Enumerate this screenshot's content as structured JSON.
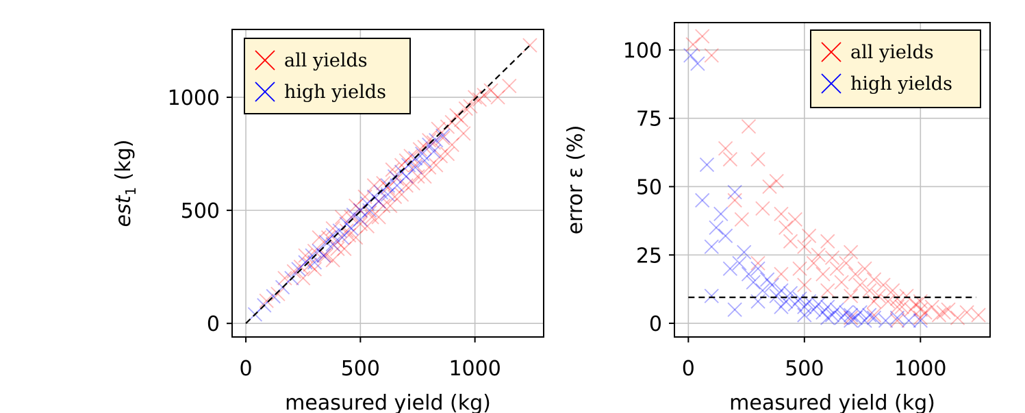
{
  "chart_data": [
    {
      "type": "scatter",
      "xlabel": "measured yield (kg)",
      "ylabel_main": "est",
      "ylabel_sub": "1",
      "ylabel_unit": " (kg)",
      "xlim": [
        -60,
        1300
      ],
      "ylim": [
        -60,
        1300
      ],
      "xticks": [
        0,
        500,
        1000
      ],
      "yticks": [
        0,
        500,
        1000
      ],
      "xtick_labels": [
        "0",
        "500",
        "1000"
      ],
      "ytick_labels": [
        "0",
        "500",
        "1000"
      ],
      "grid": true,
      "legend_position": "top-left",
      "legend": [
        "all yields",
        "high yields"
      ],
      "reference_line": {
        "from": [
          0,
          0
        ],
        "to": [
          1240,
          1230
        ],
        "style": "dashed",
        "color": "#000000"
      },
      "series": [
        {
          "name": "all yields",
          "color": "#ff0000",
          "marker": "x",
          "x": [
            90,
            140,
            170,
            210,
            240,
            260,
            280,
            300,
            320,
            340,
            360,
            380,
            400,
            420,
            440,
            460,
            480,
            500,
            520,
            540,
            560,
            580,
            600,
            620,
            640,
            660,
            680,
            700,
            720,
            740,
            760,
            780,
            800,
            820,
            840,
            860,
            880,
            900,
            920,
            940,
            960,
            980,
            1000,
            1020,
            1040,
            1070,
            1100,
            1150,
            1240,
            250,
            300,
            350,
            400,
            450,
            500,
            550,
            600,
            650,
            700,
            750,
            800,
            850,
            900,
            950,
            380,
            430,
            480,
            530,
            580,
            630,
            680,
            730,
            780,
            830,
            880
          ],
          "y": [
            100,
            130,
            200,
            230,
            250,
            300,
            260,
            320,
            380,
            300,
            380,
            420,
            360,
            470,
            410,
            470,
            520,
            500,
            560,
            490,
            610,
            540,
            620,
            600,
            680,
            640,
            700,
            720,
            740,
            700,
            770,
            780,
            810,
            800,
            860,
            820,
            870,
            890,
            920,
            900,
            950,
            960,
            1000,
            990,
            1010,
            1030,
            1000,
            1050,
            1230,
            200,
            240,
            300,
            330,
            390,
            440,
            470,
            520,
            560,
            610,
            650,
            690,
            740,
            790,
            840,
            280,
            330,
            380,
            430,
            470,
            520,
            570,
            620,
            650,
            700,
            750
          ]
        },
        {
          "name": "high yields",
          "color": "#0000ff",
          "marker": "x",
          "x": [
            40,
            80,
            120,
            160,
            200,
            230,
            260,
            290,
            320,
            350,
            380,
            410,
            440,
            470,
            500,
            530,
            560,
            590,
            620,
            650,
            680,
            710,
            740,
            770,
            800,
            830,
            860,
            300,
            340,
            380,
            420,
            460,
            500,
            540,
            580,
            620,
            660,
            700,
            740,
            780,
            820
          ],
          "y": [
            40,
            80,
            120,
            160,
            200,
            240,
            270,
            300,
            320,
            360,
            390,
            410,
            440,
            480,
            500,
            530,
            560,
            580,
            610,
            650,
            670,
            700,
            730,
            750,
            790,
            810,
            830,
            270,
            300,
            350,
            380,
            420,
            460,
            500,
            540,
            570,
            610,
            650,
            690,
            720,
            760
          ]
        }
      ]
    },
    {
      "type": "scatter",
      "xlabel": "measured yield (kg)",
      "ylabel_main": "error ε (%)",
      "xlim": [
        -60,
        1300
      ],
      "ylim": [
        -5,
        110
      ],
      "xticks": [
        0,
        500,
        1000
      ],
      "yticks": [
        0,
        25,
        50,
        75,
        100
      ],
      "xtick_labels": [
        "0",
        "500",
        "1000"
      ],
      "ytick_labels": [
        "0",
        "25",
        "50",
        "75",
        "100"
      ],
      "grid": true,
      "legend_position": "top-right",
      "legend": [
        "all yields",
        "high yields"
      ],
      "reference_line": {
        "from": [
          0,
          9.5
        ],
        "to": [
          1240,
          9.5
        ],
        "style": "dashed",
        "color": "#000000"
      },
      "series": [
        {
          "name": "all yields",
          "color": "#ff0000",
          "marker": "x",
          "x": [
            20,
            60,
            100,
            160,
            180,
            200,
            230,
            260,
            300,
            320,
            350,
            380,
            400,
            420,
            440,
            460,
            480,
            500,
            520,
            540,
            560,
            580,
            600,
            620,
            640,
            660,
            680,
            700,
            720,
            740,
            760,
            780,
            800,
            820,
            840,
            860,
            880,
            900,
            920,
            940,
            960,
            980,
            1000,
            1020,
            1050,
            1080,
            1120,
            1160,
            1200,
            1250,
            300,
            400,
            500,
            600,
            700,
            800,
            900,
            1000,
            1100,
            700,
            800,
            900,
            1000
          ],
          "y": [
            102,
            105,
            98,
            64,
            60,
            45,
            38,
            72,
            60,
            42,
            50,
            52,
            40,
            35,
            30,
            38,
            20,
            28,
            32,
            22,
            25,
            18,
            30,
            24,
            20,
            15,
            22,
            26,
            18,
            14,
            20,
            12,
            16,
            10,
            14,
            8,
            12,
            9,
            6,
            10,
            5,
            7,
            8,
            4,
            6,
            3,
            5,
            2,
            4,
            3,
            22,
            18,
            14,
            12,
            10,
            8,
            6,
            5,
            4,
            2,
            3,
            1,
            2
          ]
        },
        {
          "name": "high yields",
          "color": "#0000ff",
          "marker": "x",
          "x": [
            10,
            40,
            60,
            80,
            100,
            120,
            140,
            160,
            180,
            200,
            220,
            240,
            260,
            280,
            300,
            320,
            340,
            360,
            380,
            400,
            420,
            440,
            460,
            480,
            500,
            520,
            540,
            560,
            580,
            600,
            620,
            640,
            660,
            680,
            700,
            720,
            740,
            760,
            780,
            800,
            850,
            900,
            950,
            1000,
            100,
            200,
            300,
            400,
            500,
            600,
            700
          ],
          "y": [
            98,
            95,
            45,
            58,
            28,
            35,
            40,
            32,
            20,
            48,
            22,
            26,
            18,
            15,
            20,
            12,
            16,
            14,
            10,
            12,
            8,
            11,
            7,
            9,
            6,
            8,
            5,
            7,
            4,
            6,
            3,
            5,
            2,
            4,
            3,
            2,
            4,
            1,
            3,
            2,
            1,
            2,
            1,
            1,
            10,
            5,
            8,
            6,
            3,
            2,
            1
          ]
        }
      ]
    }
  ]
}
